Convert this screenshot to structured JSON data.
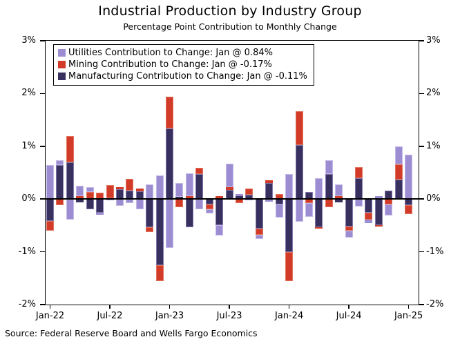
{
  "chart_data": {
    "type": "bar",
    "stacked": true,
    "title": "Industrial Production by Industry Group",
    "subtitle": "Percentage Point Contribution to Monthly Change",
    "source": "Source: Federal Reserve Board and Wells Fargo Economics",
    "grid": false,
    "zero_line": true,
    "legend_position": "upper-left",
    "ylim": [
      -2,
      3
    ],
    "yticks": [
      {
        "value": 3,
        "label": "3%"
      },
      {
        "value": 2,
        "label": "2%"
      },
      {
        "value": 1,
        "label": "1%"
      },
      {
        "value": 0,
        "label": "0%"
      },
      {
        "value": -1,
        "label": "-1%"
      },
      {
        "value": -2,
        "label": "-2%"
      }
    ],
    "xticks": [
      {
        "month_index": 0,
        "label": "Jan-22"
      },
      {
        "month_index": 6,
        "label": "Jul-22"
      },
      {
        "month_index": 12,
        "label": "Jan-23"
      },
      {
        "month_index": 18,
        "label": "Jul-23"
      },
      {
        "month_index": 24,
        "label": "Jan-24"
      },
      {
        "month_index": 30,
        "label": "Jul-24"
      },
      {
        "month_index": 36,
        "label": "Jan-25"
      }
    ],
    "categories": [
      "Jan-22",
      "Feb-22",
      "Mar-22",
      "Apr-22",
      "May-22",
      "Jun-22",
      "Jul-22",
      "Aug-22",
      "Sep-22",
      "Oct-22",
      "Nov-22",
      "Dec-22",
      "Jan-23",
      "Feb-23",
      "Mar-23",
      "Apr-23",
      "May-23",
      "Jun-23",
      "Jul-23",
      "Aug-23",
      "Sep-23",
      "Oct-23",
      "Nov-23",
      "Dec-23",
      "Jan-24",
      "Feb-24",
      "Mar-24",
      "Apr-24",
      "May-24",
      "Jun-24",
      "Jul-24",
      "Aug-24",
      "Sep-24",
      "Oct-24",
      "Nov-24",
      "Dec-24",
      "Jan-25"
    ],
    "series": [
      {
        "name": "Utilities Contribution to Change: Jan @ 0.84%",
        "color": "#9c8dd3",
        "edge_color": "#c4bbe8",
        "values": [
          0.65,
          0.09,
          -0.39,
          0.19,
          0.09,
          -0.04,
          -0.03,
          -0.13,
          -0.07,
          -0.2,
          0.28,
          0.45,
          -0.93,
          0.27,
          0.43,
          -0.2,
          -0.08,
          -0.19,
          0.45,
          0.04,
          -0.03,
          -0.08,
          -0.05,
          -0.25,
          0.47,
          -0.43,
          -0.27,
          0.39,
          0.26,
          0.22,
          -0.13,
          -0.14,
          -0.06,
          0.05,
          -0.21,
          0.34,
          0.84
        ]
      },
      {
        "name": "Mining Contribution to Change: Jan @ -0.17%",
        "color": "#d23b27",
        "edge_color": "#e2745f",
        "values": [
          -0.18,
          -0.11,
          0.51,
          0.06,
          0.13,
          0.12,
          0.24,
          0.05,
          0.22,
          0.05,
          -0.09,
          -0.31,
          0.6,
          -0.15,
          0.06,
          0.11,
          -0.09,
          0.05,
          0.05,
          -0.07,
          0.12,
          -0.12,
          0.04,
          0.1,
          -0.55,
          0.64,
          -0.07,
          -0.02,
          -0.16,
          0.06,
          -0.08,
          0.21,
          -0.13,
          -0.03,
          -0.1,
          0.29,
          -0.17
        ]
      },
      {
        "name": "Manufacturing Contribution to Change: Jan @ -0.11%",
        "color": "#38305f",
        "edge_color": "#8279ad",
        "values": [
          -0.42,
          0.64,
          0.69,
          -0.06,
          -0.19,
          -0.26,
          0.02,
          0.18,
          0.16,
          0.15,
          -0.54,
          -1.25,
          1.34,
          0.04,
          -0.54,
          0.48,
          -0.1,
          -0.5,
          0.17,
          0.06,
          0.08,
          -0.56,
          0.31,
          -0.1,
          -1.0,
          1.02,
          0.13,
          -0.54,
          0.48,
          -0.06,
          -0.52,
          0.4,
          -0.26,
          -0.49,
          0.16,
          0.37,
          -0.11
        ]
      }
    ],
    "stack_order_from_zero_series_indexes": [
      2,
      1,
      0
    ]
  }
}
